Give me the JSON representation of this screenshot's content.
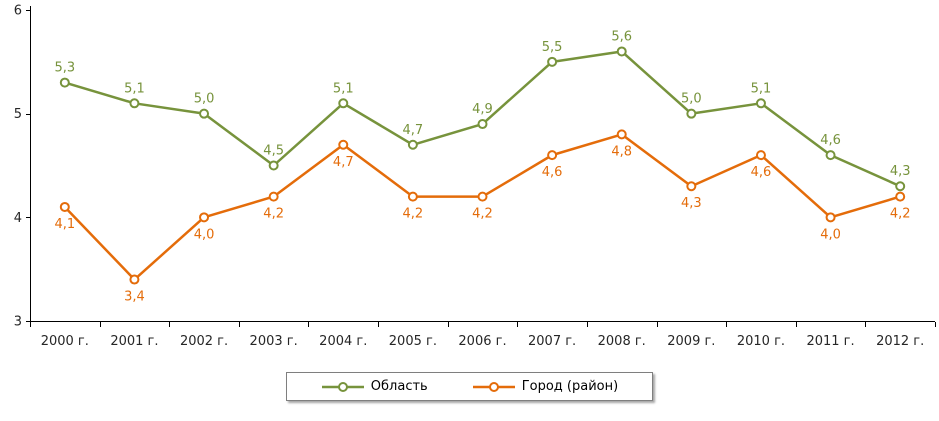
{
  "chart_data": {
    "type": "line",
    "title": "",
    "xlabel": "",
    "ylabel": "",
    "categories": [
      "2000 г.",
      "2001 г.",
      "2002 г.",
      "2003 г.",
      "2004 г.",
      "2005 г.",
      "2006 г.",
      "2007 г.",
      "2008 г.",
      "2009 г.",
      "2010 г.",
      "2011 г.",
      "2012 г."
    ],
    "series": [
      {
        "name": "Область",
        "color": "#77933C",
        "values": [
          5.3,
          5.1,
          5.0,
          4.5,
          5.1,
          4.7,
          4.9,
          5.5,
          5.6,
          5.0,
          5.1,
          4.6,
          4.3
        ],
        "labels": [
          "5,3",
          "5,1",
          "5,0",
          "4,5",
          "5,1",
          "4,7",
          "4,9",
          "5,5",
          "5,6",
          "5,0",
          "5,1",
          "4,6",
          "4,3"
        ],
        "label_position": "above"
      },
      {
        "name": "Город (район)",
        "color": "#E46C0A",
        "values": [
          4.1,
          3.4,
          4.0,
          4.2,
          4.7,
          4.2,
          4.2,
          4.6,
          4.8,
          4.3,
          4.6,
          4.0,
          4.2
        ],
        "labels": [
          "4,1",
          "3,4",
          "4,0",
          "4,2",
          "4,7",
          "4,2",
          "4,2",
          "4,6",
          "4,8",
          "4,3",
          "4,6",
          "4,0",
          "4,2"
        ],
        "label_position": "below"
      }
    ],
    "ylim": [
      3,
      6
    ],
    "yticks": [
      3,
      4,
      5,
      6
    ],
    "grid": false,
    "legend_position": "bottom",
    "marker": "circle-open"
  }
}
